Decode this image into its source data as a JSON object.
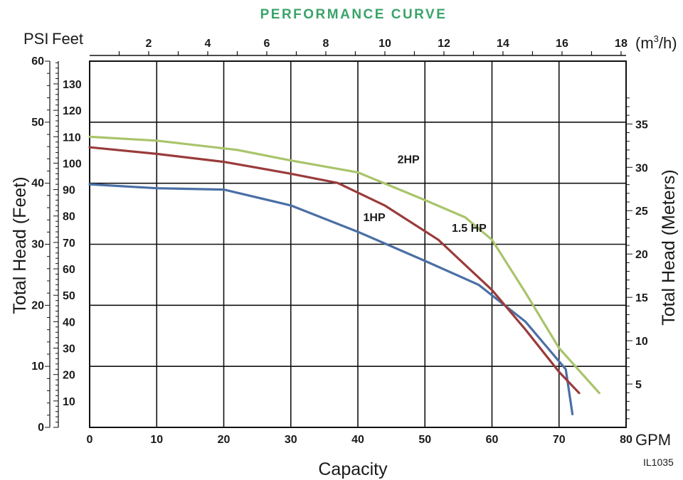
{
  "chart_data": {
    "type": "line",
    "title": "PERFORMANCE CURVE",
    "xlabel": "Capacity",
    "x_unit": "GPM",
    "x_ticks": [
      "0",
      "10",
      "20",
      "30",
      "40",
      "50",
      "60",
      "70",
      "80"
    ],
    "xlim": [
      0,
      80
    ],
    "top_axis": {
      "unit": "m³/h",
      "unit_prefix": "(m",
      "unit_sup": "3",
      "unit_suffix": "/h)",
      "ticks": [
        "2",
        "4",
        "6",
        "8",
        "10",
        "12",
        "14",
        "16",
        "18"
      ]
    },
    "ylabel_left": "Total Head (Feet)",
    "ylabel_right": "Total Head (Meters)",
    "header_psi": "PSI",
    "header_feet": "Feet",
    "psi_ticks": [
      "0",
      "10",
      "20",
      "30",
      "40",
      "50",
      "60"
    ],
    "feet_ticks": [
      "10",
      "20",
      "30",
      "40",
      "50",
      "60",
      "70",
      "80",
      "90",
      "100",
      "110",
      "120",
      "130"
    ],
    "meters_ticks": [
      "5",
      "10",
      "15",
      "20",
      "25",
      "30",
      "35"
    ],
    "ylim_psi": [
      0,
      60
    ],
    "grid": true,
    "series": [
      {
        "name": "1HP",
        "color": "#4a6fa5",
        "x": [
          0,
          10,
          20,
          30,
          40,
          50,
          58,
          65,
          71,
          72
        ],
        "y": [
          92,
          90.5,
          90,
          84,
          74,
          63,
          54,
          40,
          22,
          5
        ]
      },
      {
        "name": "1.5 HP",
        "color": "#9a3b3b",
        "x": [
          0,
          10,
          20,
          30,
          37,
          44,
          52,
          60,
          65,
          70,
          73
        ],
        "y": [
          106,
          103.5,
          100.5,
          96,
          92.5,
          84,
          71,
          52,
          37,
          21,
          13
        ]
      },
      {
        "name": "2HP",
        "color": "#a9c46a",
        "x": [
          0,
          10,
          22,
          30,
          40,
          50,
          56,
          60,
          65,
          70,
          76
        ],
        "y": [
          110,
          108.5,
          105,
          101,
          96.5,
          86,
          79.5,
          71,
          51,
          30,
          13
        ]
      }
    ]
  },
  "figure_code": "IL1035"
}
